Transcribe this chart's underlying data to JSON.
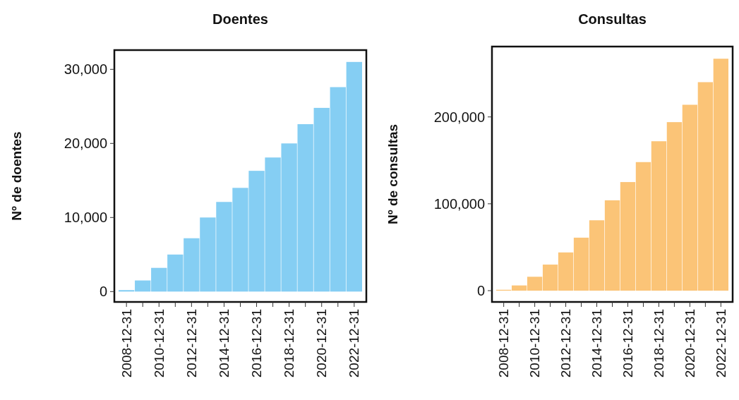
{
  "chart_data": [
    {
      "type": "bar",
      "title": "Doentes",
      "ylabel": "Nº de doentes",
      "categories": [
        "2008-12-31",
        null,
        "2010-12-31",
        null,
        "2012-12-31",
        null,
        "2014-12-31",
        null,
        "2016-12-31",
        null,
        "2018-12-31",
        null,
        "2020-12-31",
        null,
        "2022-12-31"
      ],
      "series": [
        {
          "color": "#85cef3",
          "values": [
            200,
            1500,
            3200,
            5000,
            7200,
            10000,
            12100,
            14000,
            16300,
            18100,
            20000,
            22600,
            24800,
            27600,
            31000
          ]
        }
      ],
      "ylim": [
        -1400,
        32600
      ],
      "yticks": [
        0,
        {
          "value": 10000,
          "label": "10,000"
        },
        {
          "value": 20000,
          "label": "20,000"
        },
        {
          "value": 30000,
          "label": "30,000"
        }
      ]
    },
    {
      "type": "bar",
      "title": "Consultas",
      "ylabel": "Nº de consultas",
      "categories": [
        "2008-12-31",
        null,
        "2010-12-31",
        null,
        "2012-12-31",
        null,
        "2014-12-31",
        null,
        "2016-12-31",
        null,
        "2018-12-31",
        null,
        "2020-12-31",
        null,
        "2022-12-31"
      ],
      "series": [
        {
          "color": "#fbc477",
          "values": [
            1000,
            6000,
            16000,
            30000,
            44000,
            61000,
            81000,
            104000,
            125000,
            148000,
            172000,
            194000,
            214000,
            240000,
            267000
          ]
        }
      ],
      "ylim": [
        -13000,
        281000
      ],
      "yticks": [
        0,
        {
          "value": 100000,
          "label": "100,000"
        },
        {
          "value": 200000,
          "label": "200,000"
        }
      ]
    }
  ]
}
